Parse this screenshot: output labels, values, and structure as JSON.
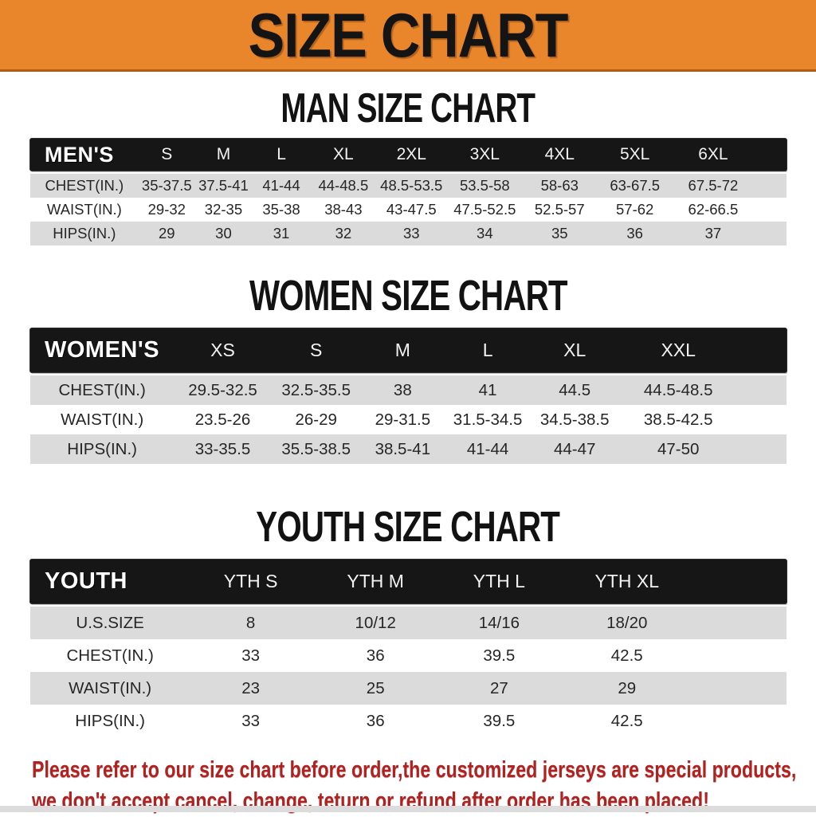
{
  "banner": {
    "title": "SIZE CHART",
    "bg_color": "#E9862C",
    "text_color": "#141414"
  },
  "table_colors": {
    "header_bg": "#161616",
    "header_text": "#FFFFFF",
    "row_shaded": "#DBDBDB",
    "row_plain": "#FFFFFF"
  },
  "sections": [
    {
      "heading": "MAN SIZE CHART",
      "table": {
        "label": "MEN'S",
        "columns": [
          "S",
          "M",
          "L",
          "XL",
          "2XL",
          "3XL",
          "4XL",
          "5XL",
          "6XL"
        ],
        "rows": [
          {
            "label": "CHEST(IN.)",
            "values": [
              "35-37.5",
              "37.5-41",
              "41-44",
              "44-48.5",
              "48.5-53.5",
              "53.5-58",
              "58-63",
              "63-67.5",
              "67.5-72"
            ]
          },
          {
            "label": "WAIST(IN.)",
            "values": [
              "29-32",
              "32-35",
              "35-38",
              "38-43",
              "43-47.5",
              "47.5-52.5",
              "52.5-57",
              "57-62",
              "62-66.5"
            ]
          },
          {
            "label": "HIPS(IN.)",
            "values": [
              "29",
              "30",
              "31",
              "32",
              "33",
              "34",
              "35",
              "36",
              "37"
            ]
          }
        ]
      }
    },
    {
      "heading": "WOMEN SIZE CHART",
      "table": {
        "label": "WOMEN'S",
        "columns": [
          "XS",
          "S",
          "M",
          "L",
          "XL",
          "XXL"
        ],
        "rows": [
          {
            "label": "CHEST(IN.)",
            "values": [
              "29.5-32.5",
              "32.5-35.5",
              "38",
              "41",
              "44.5",
              "44.5-48.5"
            ]
          },
          {
            "label": "WAIST(IN.)",
            "values": [
              "23.5-26",
              "26-29",
              "29-31.5",
              "31.5-34.5",
              "34.5-38.5",
              "38.5-42.5"
            ]
          },
          {
            "label": "HIPS(IN.)",
            "values": [
              "33-35.5",
              "35.5-38.5",
              "38.5-41",
              "41-44",
              "44-47",
              "47-50"
            ]
          }
        ]
      }
    },
    {
      "heading": "YOUTH SIZE CHART",
      "table": {
        "label": "YOUTH",
        "columns": [
          "YTH S",
          "YTH M",
          "YTH L",
          "YTH XL"
        ],
        "rows": [
          {
            "label": "U.S.SIZE",
            "values": [
              "8",
              "10/12",
              "14/16",
              "18/20"
            ]
          },
          {
            "label": "CHEST(IN.)",
            "values": [
              "33",
              "36",
              "39.5",
              "42.5"
            ]
          },
          {
            "label": "WAIST(IN.)",
            "values": [
              "23",
              "25",
              "27",
              "29"
            ]
          },
          {
            "label": "HIPS(IN.)",
            "values": [
              "33",
              "36",
              "39.5",
              "42.5"
            ]
          }
        ]
      }
    }
  ],
  "footer": {
    "line1": "Please refer to our size chart before order,the customized jerseys are special products,",
    "line2": "we don't accept cancel, change, teturn or refund after order has been placed!",
    "text_color": "#B0211F"
  }
}
